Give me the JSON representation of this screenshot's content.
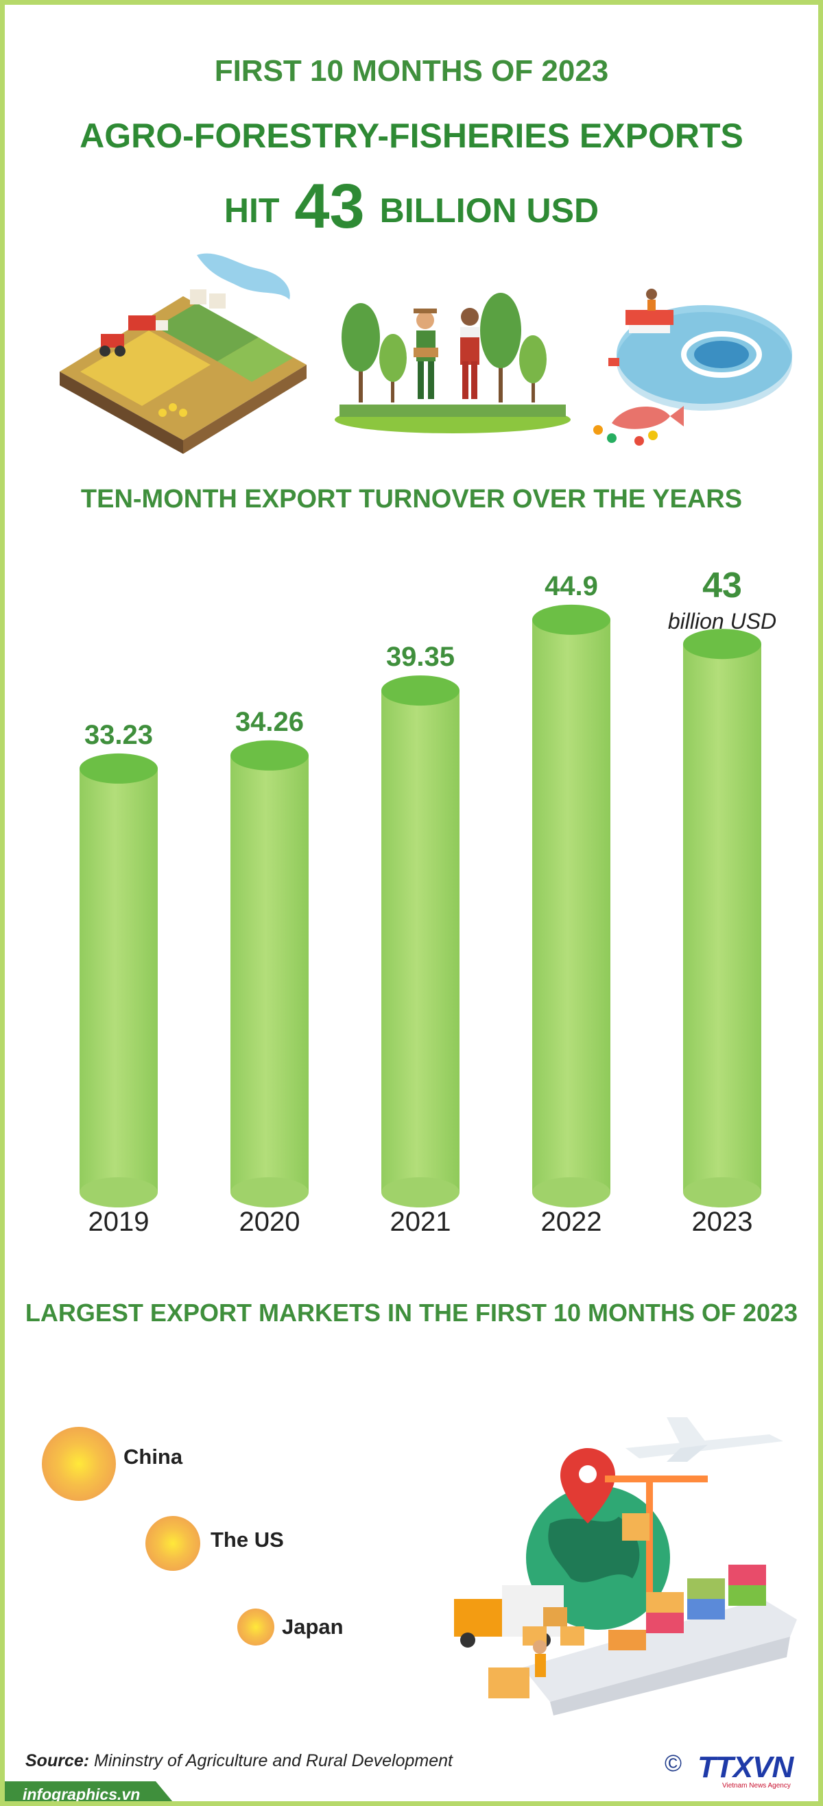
{
  "header": {
    "line1": "FIRST 10 MONTHS OF 2023",
    "line2": "AGRO-FORESTRY-FISHERIES EXPORTS",
    "line3_prefix": "HIT",
    "line3_number": "43",
    "line3_suffix": "BILLION USD"
  },
  "colors": {
    "accent": "#3f8f3c",
    "border": "#b6d96a",
    "bar_body": "#a3d46e",
    "bar_top": "#6cbf45",
    "market_dot": "#f7c73c"
  },
  "chart_data": {
    "type": "bar",
    "title": "TEN-MONTH EXPORT TURNOVER OVER THE YEARS",
    "categories": [
      "2019",
      "2020",
      "2021",
      "2022",
      "2023"
    ],
    "values": [
      33.23,
      34.26,
      39.35,
      44.9,
      43
    ],
    "value_labels": [
      "33.23",
      "34.26",
      "39.35",
      "44.9",
      "43"
    ],
    "unit_label": "billion USD",
    "ylim": [
      0,
      46
    ],
    "grid": false,
    "legend": "none"
  },
  "markets": {
    "title": "LARGEST EXPORT MARKETS IN THE FIRST 10 MONTHS OF 2023",
    "items": [
      {
        "name": "China",
        "rank": 1
      },
      {
        "name": "The US",
        "rank": 2
      },
      {
        "name": "Japan",
        "rank": 3
      }
    ]
  },
  "source": {
    "label": "Source:",
    "text": "Mininstry of Agriculture and Rural Development"
  },
  "footer": {
    "site": "infographics.vn",
    "logo_symbol": "©",
    "logo_text": "TTXVN",
    "logo_sub": "Vietnam News Agency"
  },
  "icons": [
    "farm-illustration",
    "farmers-illustration",
    "aquaculture-illustration",
    "logistics-illustration"
  ]
}
